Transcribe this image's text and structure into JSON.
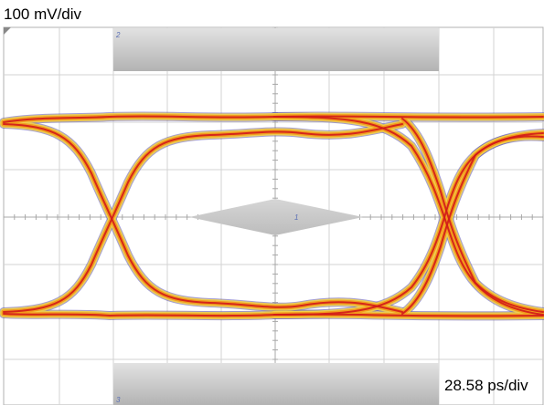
{
  "scales": {
    "vertical": "100 mV/div",
    "horizontal": "28.58 ps/div"
  },
  "mask_numbers": {
    "top": "2",
    "center": "1",
    "bottom": "3"
  },
  "colors": {
    "trace_core": "#d11a1a",
    "trace_mid": "#f29a1b",
    "trace_outer": "#f2d04a",
    "trace_edge": "#5a4fb0",
    "grid": "#cfcfcf",
    "mask": "#bdbdbd"
  }
}
